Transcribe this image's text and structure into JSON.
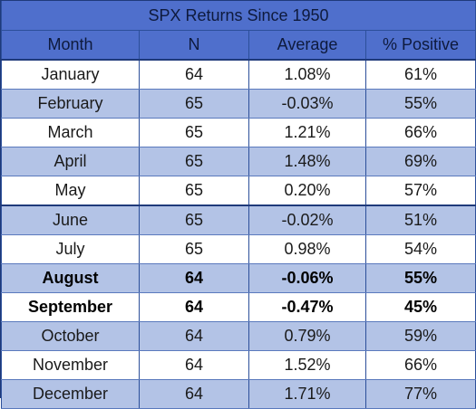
{
  "chart_data": {
    "type": "table",
    "title": "SPX Returns Since 1950",
    "columns": [
      "Month",
      "N",
      "Average",
      "% Positive"
    ],
    "rows": [
      {
        "month": "January",
        "n": "64",
        "average": "1.08%",
        "positive": "61%",
        "shade": "white",
        "bold": false
      },
      {
        "month": "February",
        "n": "65",
        "average": "-0.03%",
        "positive": "55%",
        "shade": "blue",
        "bold": false
      },
      {
        "month": "March",
        "n": "65",
        "average": "1.21%",
        "positive": "66%",
        "shade": "white",
        "bold": false
      },
      {
        "month": "April",
        "n": "65",
        "average": "1.48%",
        "positive": "69%",
        "shade": "blue",
        "bold": false
      },
      {
        "month": "May",
        "n": "65",
        "average": "0.20%",
        "positive": "57%",
        "shade": "white",
        "bold": false
      },
      {
        "month": "June",
        "n": "65",
        "average": "-0.02%",
        "positive": "51%",
        "shade": "blue",
        "bold": false
      },
      {
        "month": "July",
        "n": "65",
        "average": "0.98%",
        "positive": "54%",
        "shade": "white",
        "bold": false
      },
      {
        "month": "August",
        "n": "64",
        "average": "-0.06%",
        "positive": "55%",
        "shade": "blue",
        "bold": true
      },
      {
        "month": "September",
        "n": "64",
        "average": "-0.47%",
        "positive": "45%",
        "shade": "white",
        "bold": true
      },
      {
        "month": "October",
        "n": "64",
        "average": "0.79%",
        "positive": "59%",
        "shade": "blue",
        "bold": false
      },
      {
        "month": "November",
        "n": "64",
        "average": "1.52%",
        "positive": "66%",
        "shade": "white",
        "bold": false
      },
      {
        "month": "December",
        "n": "64",
        "average": "1.71%",
        "positive": "77%",
        "shade": "blue",
        "bold": false
      }
    ]
  },
  "colors": {
    "header_bg": "#4f6fcc",
    "band_blue": "#b3c3e6",
    "band_white": "#ffffff",
    "border": "#1f3a7a"
  }
}
